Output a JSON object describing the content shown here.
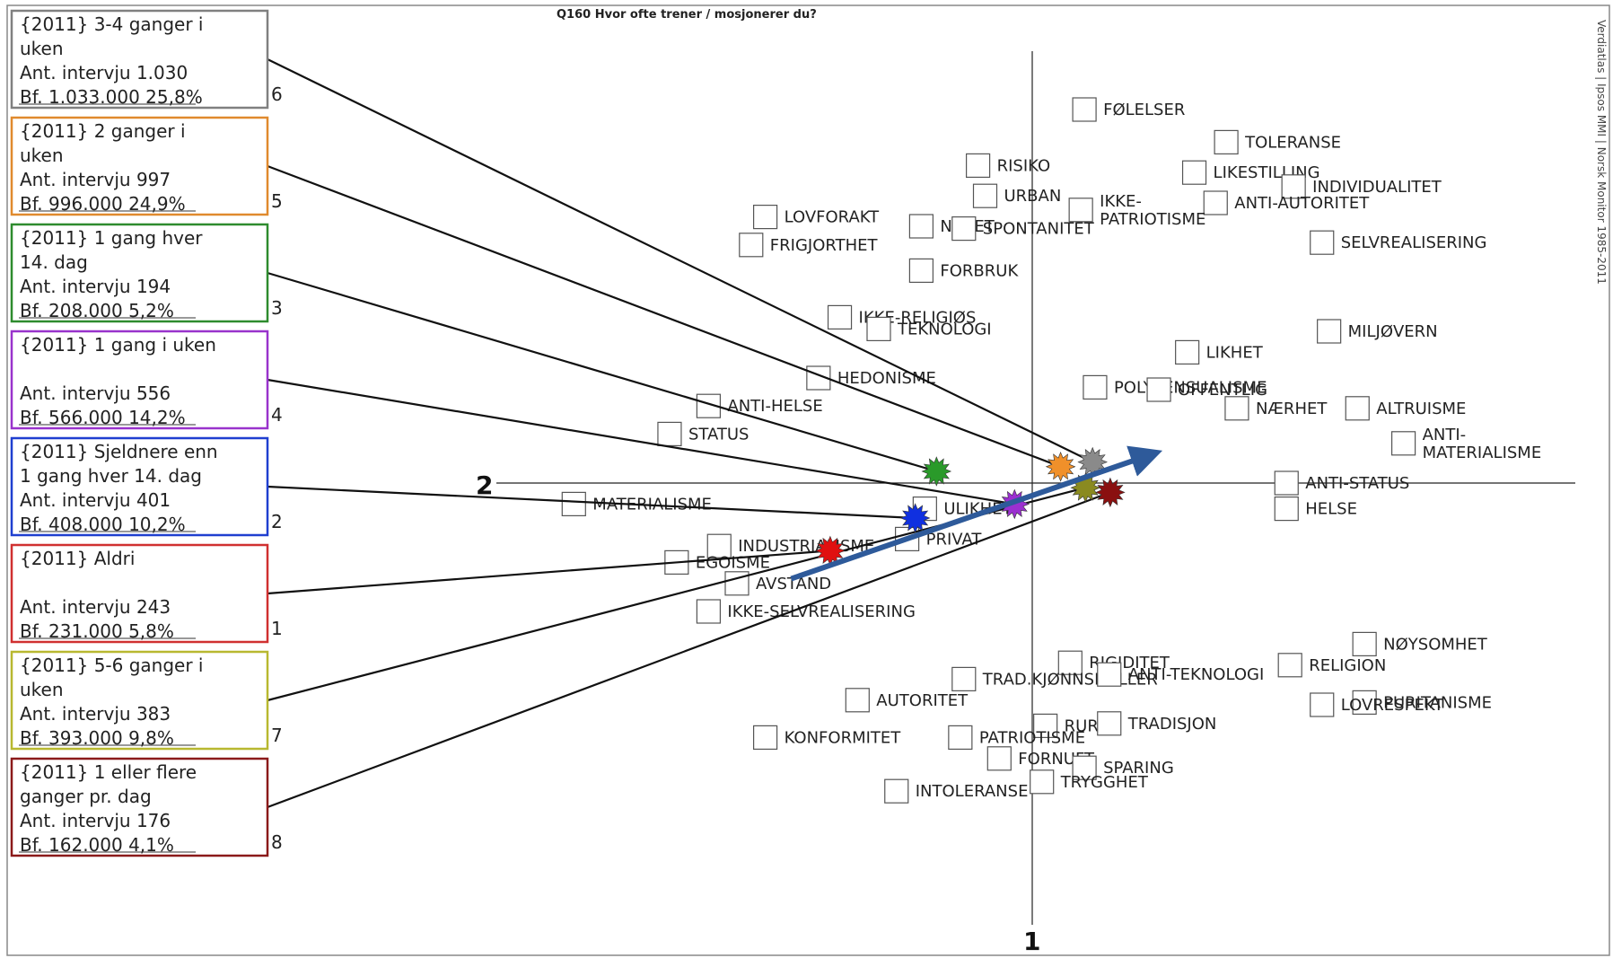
{
  "chart_data": {
    "type": "scatter",
    "title": "Q160 Hvor ofte trener / mosjonerer du?",
    "side_note": "Verdiatlas | Ipsos MMI | Norsk Monitor 1985-2011",
    "axis_labels": {
      "horizontal": "2",
      "vertical": "1"
    },
    "xlim": [
      -1.0,
      1.0
    ],
    "ylim": [
      -1.0,
      1.0
    ],
    "grid": false,
    "groups": [
      {
        "title_lines": [
          "{2011} 3-4 ganger i",
          "uken"
        ],
        "interviews_label": "Ant. intervju",
        "interviews": "1.030",
        "bf_label": "Bf.",
        "bf": "1.033.000",
        "pct": "25,8%",
        "num": "6",
        "color": "#808080",
        "marker_color": "#8a8a8a",
        "x": 0.085,
        "y": 0.045
      },
      {
        "title_lines": [
          "{2011} 2 ganger i",
          "uken"
        ],
        "interviews_label": "Ant. intervju",
        "interviews": "997",
        "bf_label": "Bf.",
        "bf": "996.000",
        "pct": "24,9%",
        "num": "5",
        "color": "#e08a2e",
        "marker_color": "#f0902a",
        "x": 0.04,
        "y": 0.035
      },
      {
        "title_lines": [
          "{2011} 1 gang hver",
          "14. dag"
        ],
        "interviews_label": "Ant. intervju",
        "interviews": "194",
        "bf_label": "Bf.",
        "bf": "208.000",
        "pct": "5,2%",
        "num": "3",
        "color": "#2e8b2e",
        "marker_color": "#2a9a2a",
        "x": -0.135,
        "y": 0.025
      },
      {
        "title_lines": [
          "{2011} 1 gang i uken",
          ""
        ],
        "interviews_label": "Ant. intervju",
        "interviews": "556",
        "bf_label": "Bf.",
        "bf": "566.000",
        "pct": "14,2%",
        "num": "4",
        "color": "#9933cc",
        "marker_color": "#9b30d0",
        "x": -0.025,
        "y": -0.045
      },
      {
        "title_lines": [
          "{2011} Sjeldnere enn",
          " 1 gang hver 14. dag"
        ],
        "interviews_label": "Ant. intervju",
        "interviews": "401",
        "bf_label": "Bf.",
        "bf": "408.000",
        "pct": "10,2%",
        "num": "2",
        "color": "#1f3fd0",
        "marker_color": "#1030e0",
        "x": -0.165,
        "y": -0.075
      },
      {
        "title_lines": [
          "{2011} Aldri",
          ""
        ],
        "interviews_label": "Ant. intervju",
        "interviews": "243",
        "bf_label": "Bf.",
        "bf": "231.000",
        "pct": "5,8%",
        "num": "1",
        "color": "#d03030",
        "marker_color": "#e01010",
        "x": -0.285,
        "y": -0.145
      },
      {
        "title_lines": [
          "{2011} 5-6 ganger i",
          "uken"
        ],
        "interviews_label": "Ant. intervju",
        "interviews": "383",
        "bf_label": "Bf.",
        "bf": "393.000",
        "pct": "9,8%",
        "num": "7",
        "color": "#b8b830",
        "marker_color": "#8a8a20",
        "x": 0.075,
        "y": -0.01
      },
      {
        "title_lines": [
          "{2011} 1 eller flere",
          " ganger pr. dag"
        ],
        "interviews_label": "Ant. intervju",
        "interviews": "176",
        "bf_label": "Bf.",
        "bf": "162.000",
        "pct": "4,1%",
        "num": "8",
        "color": "#8b1a1a",
        "marker_color": "#8a1010",
        "x": 0.11,
        "y": -0.02
      }
    ],
    "trend_arrow": {
      "from": [
        -0.34,
        -0.205
      ],
      "to": [
        0.175,
        0.065
      ],
      "color": "#2e5a9a"
    },
    "concepts": [
      {
        "label": "FØLELSER",
        "x": 0.09,
        "y": 0.8
      },
      {
        "label": "TOLERANSE",
        "x": 0.29,
        "y": 0.73
      },
      {
        "label": "RISIKO",
        "x": -0.06,
        "y": 0.68
      },
      {
        "label": "LIKESTILLING",
        "x": 0.245,
        "y": 0.665
      },
      {
        "label": "INDIVIDUALITET",
        "x": 0.385,
        "y": 0.635
      },
      {
        "label": "URBAN",
        "x": -0.05,
        "y": 0.615
      },
      {
        "label": "ANTI-AUTORITET",
        "x": 0.275,
        "y": 0.6
      },
      {
        "label": "IKKE-\nPATRIOTISME",
        "x": 0.085,
        "y": 0.585
      },
      {
        "label": "LOVFORAKT",
        "x": -0.36,
        "y": 0.57
      },
      {
        "label": "NYHET",
        "x": -0.14,
        "y": 0.55
      },
      {
        "label": "SPONTANITET",
        "x": -0.08,
        "y": 0.545
      },
      {
        "label": "FRIGJORTHET",
        "x": -0.38,
        "y": 0.51
      },
      {
        "label": "SELVREALISERING",
        "x": 0.425,
        "y": 0.515
      },
      {
        "label": "FORBRUK",
        "x": -0.14,
        "y": 0.455
      },
      {
        "label": "IKKE-RELIGIØS",
        "x": -0.255,
        "y": 0.355
      },
      {
        "label": "TEKNOLOGI",
        "x": -0.2,
        "y": 0.33
      },
      {
        "label": "MILJØVERN",
        "x": 0.435,
        "y": 0.325
      },
      {
        "label": "LIKHET",
        "x": 0.235,
        "y": 0.28
      },
      {
        "label": "HEDONISME",
        "x": -0.285,
        "y": 0.225
      },
      {
        "label": "POLYSENSUALISME",
        "x": 0.105,
        "y": 0.205
      },
      {
        "label": "OFFENTLIG",
        "x": 0.195,
        "y": 0.2
      },
      {
        "label": "ANTI-HELSE",
        "x": -0.44,
        "y": 0.165
      },
      {
        "label": "NÆRHET",
        "x": 0.305,
        "y": 0.16
      },
      {
        "label": "ALTRUISME",
        "x": 0.475,
        "y": 0.16
      },
      {
        "label": "STATUS",
        "x": -0.495,
        "y": 0.105
      },
      {
        "label": "ANTI-\nMATERIALISME",
        "x": 0.54,
        "y": 0.085
      },
      {
        "label": "ANTI-STATUS",
        "x": 0.375,
        "y": 0.0
      },
      {
        "label": "MATERIALISME",
        "x": -0.63,
        "y": -0.045
      },
      {
        "label": "ULIKHET",
        "x": -0.135,
        "y": -0.055
      },
      {
        "label": "HELSE",
        "x": 0.375,
        "y": -0.055
      },
      {
        "label": "PRIVAT",
        "x": -0.16,
        "y": -0.12
      },
      {
        "label": "INDUSTRIALISME",
        "x": -0.425,
        "y": -0.135
      },
      {
        "label": "EGOISME",
        "x": -0.485,
        "y": -0.17
      },
      {
        "label": "AVSTAND",
        "x": -0.4,
        "y": -0.215
      },
      {
        "label": "IKKE-SELVREALISERING",
        "x": -0.44,
        "y": -0.275
      },
      {
        "label": "NØYSOMHET",
        "x": 0.485,
        "y": -0.345
      },
      {
        "label": "RIGIDITET",
        "x": 0.07,
        "y": -0.385
      },
      {
        "label": "RELIGION",
        "x": 0.38,
        "y": -0.39
      },
      {
        "label": "TRAD.KJØNNSROLLER",
        "x": -0.08,
        "y": -0.42
      },
      {
        "label": "ANTI-TEKNOLOGI",
        "x": 0.125,
        "y": -0.41
      },
      {
        "label": "AUTORITET",
        "x": -0.23,
        "y": -0.465
      },
      {
        "label": "PURITANISME",
        "x": 0.485,
        "y": -0.47
      },
      {
        "label": "LOVRESPEKT",
        "x": 0.425,
        "y": -0.475
      },
      {
        "label": "RURAL",
        "x": 0.035,
        "y": -0.52
      },
      {
        "label": "TRADISJON",
        "x": 0.125,
        "y": -0.515
      },
      {
        "label": "PATRIOTISME",
        "x": -0.085,
        "y": -0.545
      },
      {
        "label": "KONFORMITET",
        "x": -0.36,
        "y": -0.545
      },
      {
        "label": "FORNUFT",
        "x": -0.03,
        "y": -0.59
      },
      {
        "label": "SPARING",
        "x": 0.09,
        "y": -0.61
      },
      {
        "label": "TRYGGHET",
        "x": 0.03,
        "y": -0.64
      },
      {
        "label": "INTOLERANSE",
        "x": -0.175,
        "y": -0.66
      }
    ]
  }
}
